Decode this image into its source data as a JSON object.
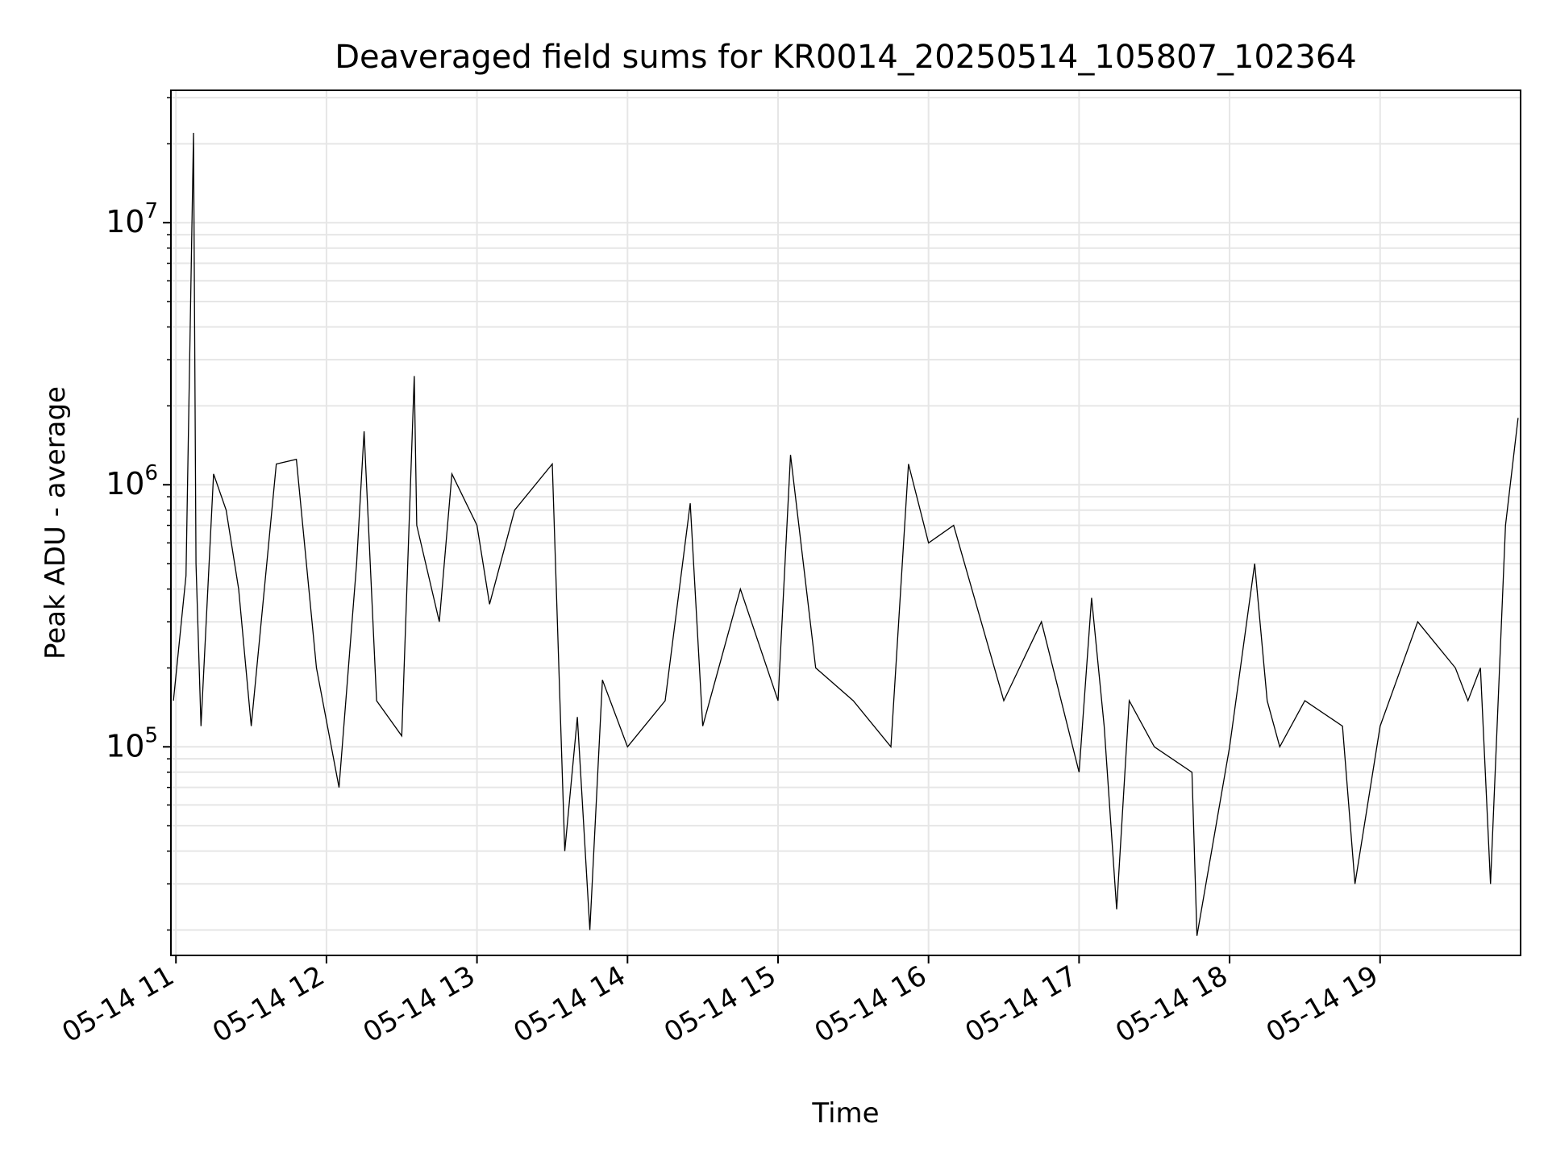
{
  "chart_data": {
    "type": "line",
    "title": "Deaveraged field sums for KR0014_20250514_105807_102364",
    "xlabel": "Time",
    "ylabel": "Peak ADU - average",
    "y_scale": "log",
    "ylim": [
      16000,
      32000000
    ],
    "xlim": [
      "2025-05-14T10:58:00",
      "2025-05-14T19:56:00"
    ],
    "grid": "on (major and minor)",
    "x_ticks": [
      {
        "label": "05-14 11",
        "value": "2025-05-14T11:00:00"
      },
      {
        "label": "05-14 12",
        "value": "2025-05-14T12:00:00"
      },
      {
        "label": "05-14 13",
        "value": "2025-05-14T13:00:00"
      },
      {
        "label": "05-14 14",
        "value": "2025-05-14T14:00:00"
      },
      {
        "label": "05-14 15",
        "value": "2025-05-14T15:00:00"
      },
      {
        "label": "05-14 16",
        "value": "2025-05-14T16:00:00"
      },
      {
        "label": "05-14 17",
        "value": "2025-05-14T17:00:00"
      },
      {
        "label": "05-14 18",
        "value": "2025-05-14T18:00:00"
      },
      {
        "label": "05-14 19",
        "value": "2025-05-14T19:00:00"
      }
    ],
    "y_ticks": [
      {
        "base": "10",
        "exp": "5",
        "value": 100000
      },
      {
        "base": "10",
        "exp": "6",
        "value": 1000000
      },
      {
        "base": "10",
        "exp": "7",
        "value": 10000000
      }
    ],
    "series": [
      {
        "color": "#000000",
        "x": [
          "2025-05-14T10:59:00",
          "2025-05-14T11:04:00",
          "2025-05-14T11:07:00",
          "2025-05-14T11:08:00",
          "2025-05-14T11:10:00",
          "2025-05-14T11:15:00",
          "2025-05-14T11:20:00",
          "2025-05-14T11:25:00",
          "2025-05-14T11:30:00",
          "2025-05-14T11:40:00",
          "2025-05-14T11:48:00",
          "2025-05-14T11:56:00",
          "2025-05-14T12:05:00",
          "2025-05-14T12:12:00",
          "2025-05-14T12:15:00",
          "2025-05-14T12:20:00",
          "2025-05-14T12:30:00",
          "2025-05-14T12:35:00",
          "2025-05-14T12:36:00",
          "2025-05-14T12:45:00",
          "2025-05-14T12:50:00",
          "2025-05-14T13:00:00",
          "2025-05-14T13:05:00",
          "2025-05-14T13:15:00",
          "2025-05-14T13:30:00",
          "2025-05-14T13:35:00",
          "2025-05-14T13:40:00",
          "2025-05-14T13:45:00",
          "2025-05-14T13:50:00",
          "2025-05-14T14:00:00",
          "2025-05-14T14:15:00",
          "2025-05-14T14:25:00",
          "2025-05-14T14:30:00",
          "2025-05-14T14:45:00",
          "2025-05-14T15:00:00",
          "2025-05-14T15:05:00",
          "2025-05-14T15:15:00",
          "2025-05-14T15:30:00",
          "2025-05-14T15:45:00",
          "2025-05-14T15:52:00",
          "2025-05-14T16:00:00",
          "2025-05-14T16:10:00",
          "2025-05-14T16:30:00",
          "2025-05-14T16:45:00",
          "2025-05-14T17:00:00",
          "2025-05-14T17:05:00",
          "2025-05-14T17:10:00",
          "2025-05-14T17:15:00",
          "2025-05-14T17:20:00",
          "2025-05-14T17:30:00",
          "2025-05-14T17:45:00",
          "2025-05-14T17:47:00",
          "2025-05-14T18:00:00",
          "2025-05-14T18:10:00",
          "2025-05-14T18:15:00",
          "2025-05-14T18:20:00",
          "2025-05-14T18:30:00",
          "2025-05-14T18:45:00",
          "2025-05-14T18:50:00",
          "2025-05-14T19:00:00",
          "2025-05-14T19:15:00",
          "2025-05-14T19:30:00",
          "2025-05-14T19:35:00",
          "2025-05-14T19:40:00",
          "2025-05-14T19:44:00",
          "2025-05-14T19:50:00",
          "2025-05-14T19:55:00"
        ],
        "values": [
          150000,
          450000,
          22000000,
          500000,
          120000,
          1100000,
          800000,
          400000,
          120000,
          1200000,
          1250000,
          200000,
          70000,
          500000,
          1600000,
          150000,
          110000,
          2600000,
          700000,
          300000,
          1100000,
          700000,
          350000,
          800000,
          1200000,
          40000,
          130000,
          20000,
          180000,
          100000,
          150000,
          850000,
          120000,
          400000,
          150000,
          1300000,
          200000,
          150000,
          100000,
          1200000,
          600000,
          700000,
          150000,
          300000,
          80000,
          370000,
          120000,
          24000,
          150000,
          100000,
          80000,
          19000,
          100000,
          500000,
          150000,
          100000,
          150000,
          120000,
          30000,
          120000,
          300000,
          200000,
          150000,
          200000,
          30000,
          700000,
          1800000
        ]
      }
    ]
  }
}
